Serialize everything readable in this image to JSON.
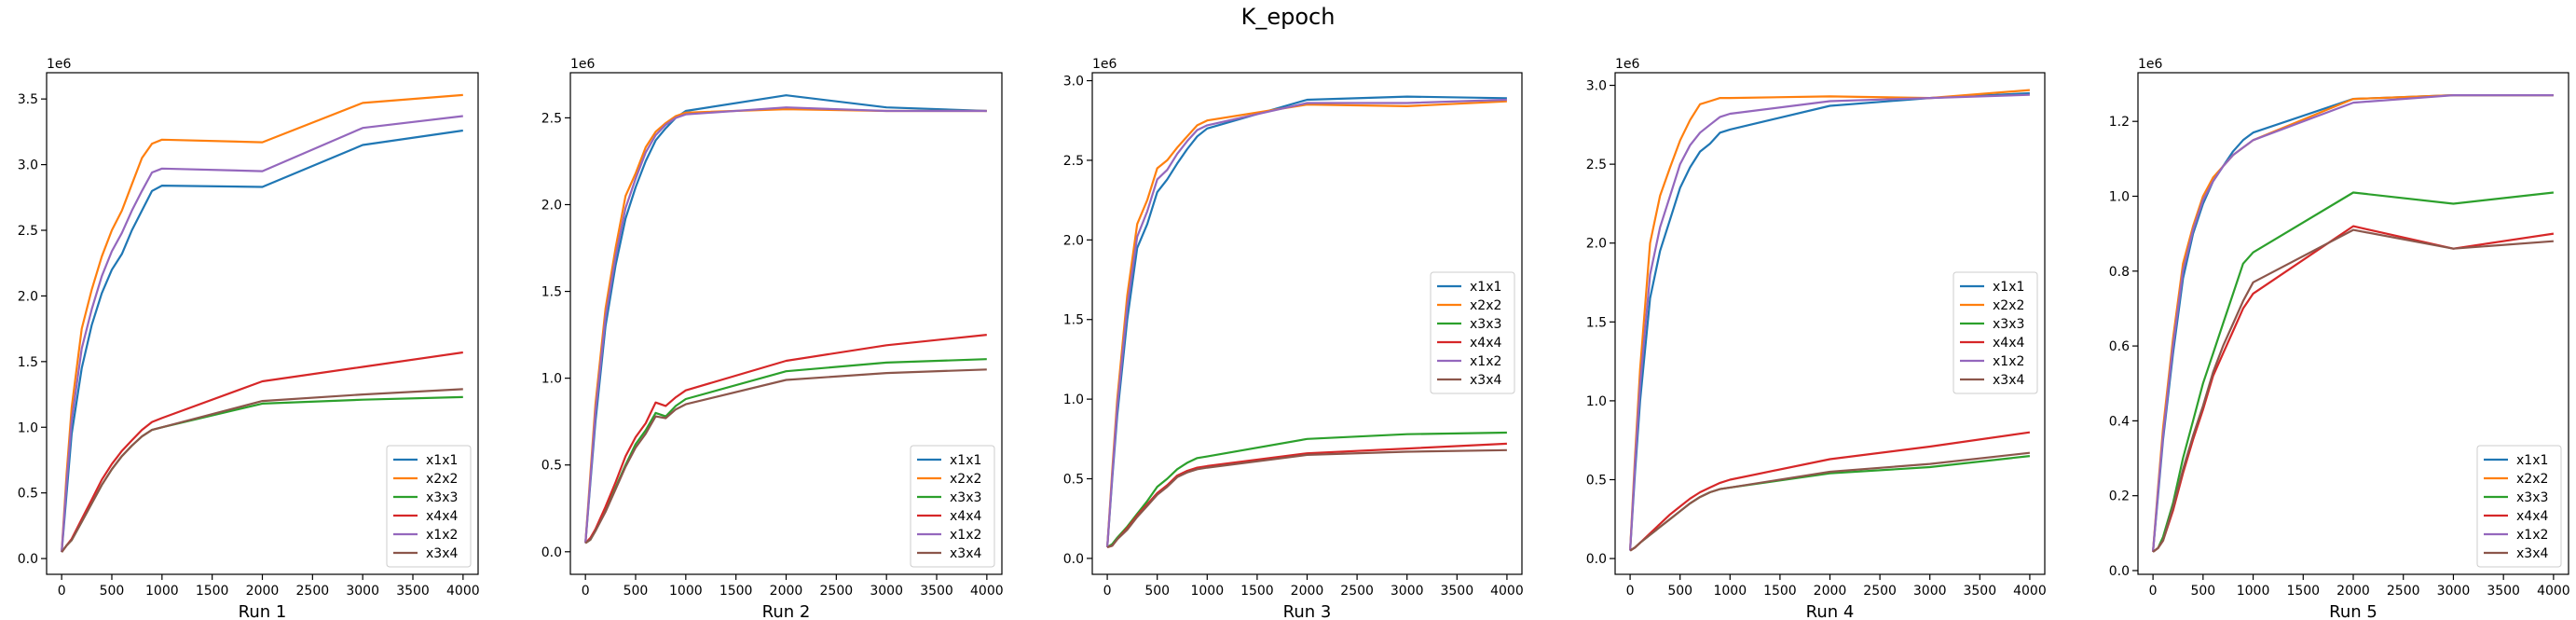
{
  "figure": {
    "title": "K_epoch"
  },
  "chart_data": [
    {
      "type": "line",
      "xlabel": "Run 1",
      "ylabel": "",
      "offset_label": "1e6",
      "xlim": [
        -150,
        4150
      ],
      "ylim": [
        -0.12,
        3.7
      ],
      "xticks": [
        0,
        500,
        1000,
        1500,
        2000,
        2500,
        3000,
        3500,
        4000
      ],
      "yticks": [
        0,
        0.5,
        1.0,
        1.5,
        2.0,
        2.5,
        3.0,
        3.5
      ],
      "ytick_labels": [
        "0.0",
        "0.5",
        "1.0",
        "1.5",
        "2.0",
        "2.5",
        "3.0",
        "3.5"
      ],
      "legend_loc": "lower-right",
      "x": [
        0,
        50,
        100,
        200,
        300,
        400,
        500,
        600,
        700,
        800,
        900,
        1000,
        2000,
        3000,
        4000
      ],
      "series": [
        {
          "name": "x1x1",
          "color": "#1f77b4",
          "values": [
            0.05,
            0.5,
            0.95,
            1.45,
            1.78,
            2.02,
            2.2,
            2.32,
            2.5,
            2.65,
            2.8,
            2.84,
            2.83,
            3.15,
            3.26
          ]
        },
        {
          "name": "x2x2",
          "color": "#ff7f0e",
          "values": [
            0.05,
            0.65,
            1.15,
            1.75,
            2.05,
            2.3,
            2.5,
            2.65,
            2.85,
            3.05,
            3.16,
            3.19,
            3.17,
            3.47,
            3.53
          ]
        },
        {
          "name": "x3x3",
          "color": "#2ca02c",
          "values": [
            0.05,
            0.1,
            0.14,
            0.28,
            0.42,
            0.56,
            0.68,
            0.78,
            0.86,
            0.93,
            0.98,
            1.0,
            1.18,
            1.21,
            1.23
          ]
        },
        {
          "name": "x4x4",
          "color": "#d62728",
          "values": [
            0.05,
            0.1,
            0.15,
            0.3,
            0.45,
            0.6,
            0.72,
            0.82,
            0.9,
            0.98,
            1.04,
            1.07,
            1.35,
            1.46,
            1.57
          ]
        },
        {
          "name": "x1x2",
          "color": "#9467bd",
          "values": [
            0.05,
            0.58,
            1.05,
            1.6,
            1.9,
            2.15,
            2.34,
            2.48,
            2.65,
            2.8,
            2.94,
            2.97,
            2.95,
            3.28,
            3.37
          ]
        },
        {
          "name": "x3x4",
          "color": "#8c564b",
          "values": [
            0.05,
            0.1,
            0.14,
            0.28,
            0.42,
            0.56,
            0.68,
            0.78,
            0.86,
            0.93,
            0.98,
            1.0,
            1.2,
            1.25,
            1.29
          ]
        }
      ]
    },
    {
      "type": "line",
      "xlabel": "Run 2",
      "ylabel": "",
      "offset_label": "1e6",
      "xlim": [
        -150,
        4150
      ],
      "ylim": [
        -0.13,
        2.76
      ],
      "xticks": [
        0,
        500,
        1000,
        1500,
        2000,
        2500,
        3000,
        3500,
        4000
      ],
      "yticks": [
        0,
        0.5,
        1.0,
        1.5,
        2.0,
        2.5
      ],
      "ytick_labels": [
        "0.0",
        "0.5",
        "1.0",
        "1.5",
        "2.0",
        "2.5"
      ],
      "legend_loc": "lower-right",
      "x": [
        0,
        50,
        100,
        200,
        300,
        400,
        500,
        600,
        700,
        800,
        900,
        1000,
        2000,
        3000,
        4000
      ],
      "series": [
        {
          "name": "x1x1",
          "color": "#1f77b4",
          "values": [
            0.05,
            0.4,
            0.75,
            1.3,
            1.65,
            1.92,
            2.1,
            2.25,
            2.37,
            2.44,
            2.5,
            2.54,
            2.63,
            2.56,
            2.54
          ]
        },
        {
          "name": "x2x2",
          "color": "#ff7f0e",
          "values": [
            0.05,
            0.45,
            0.85,
            1.4,
            1.75,
            2.05,
            2.18,
            2.33,
            2.42,
            2.47,
            2.51,
            2.53,
            2.55,
            2.54,
            2.54
          ]
        },
        {
          "name": "x3x3",
          "color": "#2ca02c",
          "values": [
            0.05,
            0.07,
            0.12,
            0.24,
            0.37,
            0.5,
            0.62,
            0.7,
            0.8,
            0.78,
            0.84,
            0.88,
            1.04,
            1.09,
            1.11
          ]
        },
        {
          "name": "x4x4",
          "color": "#d62728",
          "values": [
            0.05,
            0.08,
            0.13,
            0.26,
            0.4,
            0.55,
            0.66,
            0.74,
            0.86,
            0.84,
            0.89,
            0.93,
            1.1,
            1.19,
            1.25
          ]
        },
        {
          "name": "x1x2",
          "color": "#9467bd",
          "values": [
            0.05,
            0.42,
            0.8,
            1.35,
            1.7,
            1.98,
            2.15,
            2.3,
            2.4,
            2.46,
            2.5,
            2.52,
            2.56,
            2.54,
            2.54
          ]
        },
        {
          "name": "x3x4",
          "color": "#8c564b",
          "values": [
            0.05,
            0.07,
            0.12,
            0.23,
            0.36,
            0.49,
            0.6,
            0.68,
            0.78,
            0.77,
            0.82,
            0.85,
            0.99,
            1.03,
            1.05
          ]
        }
      ]
    },
    {
      "type": "line",
      "xlabel": "Run 3",
      "ylabel": "",
      "offset_label": "1e6",
      "xlim": [
        -150,
        4150
      ],
      "ylim": [
        -0.1,
        3.05
      ],
      "xticks": [
        0,
        500,
        1000,
        1500,
        2000,
        2500,
        3000,
        3500,
        4000
      ],
      "yticks": [
        0,
        0.5,
        1.0,
        1.5,
        2.0,
        2.5,
        3.0
      ],
      "ytick_labels": [
        "0.0",
        "0.5",
        "1.0",
        "1.5",
        "2.0",
        "2.5",
        "3.0"
      ],
      "legend_loc": "center-right",
      "x": [
        0,
        50,
        100,
        200,
        300,
        400,
        500,
        600,
        700,
        800,
        900,
        1000,
        2000,
        3000,
        4000
      ],
      "series": [
        {
          "name": "x1x1",
          "color": "#1f77b4",
          "values": [
            0.07,
            0.5,
            0.9,
            1.5,
            1.95,
            2.1,
            2.3,
            2.38,
            2.48,
            2.57,
            2.65,
            2.7,
            2.88,
            2.9,
            2.89
          ]
        },
        {
          "name": "x2x2",
          "color": "#ff7f0e",
          "values": [
            0.07,
            0.55,
            1.0,
            1.65,
            2.1,
            2.25,
            2.45,
            2.5,
            2.58,
            2.65,
            2.72,
            2.75,
            2.85,
            2.84,
            2.87
          ]
        },
        {
          "name": "x3x3",
          "color": "#2ca02c",
          "values": [
            0.07,
            0.09,
            0.13,
            0.2,
            0.28,
            0.36,
            0.45,
            0.5,
            0.56,
            0.6,
            0.63,
            0.64,
            0.75,
            0.78,
            0.79
          ]
        },
        {
          "name": "x4x4",
          "color": "#d62728",
          "values": [
            0.07,
            0.08,
            0.12,
            0.19,
            0.27,
            0.34,
            0.41,
            0.46,
            0.52,
            0.55,
            0.57,
            0.58,
            0.66,
            0.69,
            0.72
          ]
        },
        {
          "name": "x1x2",
          "color": "#9467bd",
          "values": [
            0.07,
            0.52,
            0.95,
            1.58,
            2.02,
            2.18,
            2.38,
            2.44,
            2.54,
            2.62,
            2.69,
            2.72,
            2.86,
            2.86,
            2.88
          ]
        },
        {
          "name": "x3x4",
          "color": "#8c564b",
          "values": [
            0.07,
            0.08,
            0.12,
            0.18,
            0.26,
            0.33,
            0.4,
            0.45,
            0.51,
            0.54,
            0.56,
            0.57,
            0.65,
            0.67,
            0.68
          ]
        }
      ]
    },
    {
      "type": "line",
      "xlabel": "Run 4",
      "ylabel": "",
      "offset_label": "1e6",
      "xlim": [
        -150,
        4150
      ],
      "ylim": [
        -0.1,
        3.08
      ],
      "xticks": [
        0,
        500,
        1000,
        1500,
        2000,
        2500,
        3000,
        3500,
        4000
      ],
      "yticks": [
        0,
        0.5,
        1.0,
        1.5,
        2.0,
        2.5,
        3.0
      ],
      "ytick_labels": [
        "0.0",
        "0.5",
        "1.0",
        "1.5",
        "2.0",
        "2.5",
        "3.0"
      ],
      "legend_loc": "center-right",
      "x": [
        0,
        50,
        100,
        200,
        300,
        400,
        500,
        600,
        700,
        800,
        900,
        1000,
        2000,
        3000,
        4000
      ],
      "series": [
        {
          "name": "x1x1",
          "color": "#1f77b4",
          "values": [
            0.05,
            0.55,
            1.0,
            1.65,
            1.95,
            2.15,
            2.35,
            2.48,
            2.58,
            2.63,
            2.7,
            2.72,
            2.87,
            2.92,
            2.95
          ]
        },
        {
          "name": "x2x2",
          "color": "#ff7f0e",
          "values": [
            0.05,
            0.65,
            1.2,
            2.0,
            2.3,
            2.48,
            2.65,
            2.78,
            2.88,
            2.9,
            2.92,
            2.92,
            2.93,
            2.92,
            2.97
          ]
        },
        {
          "name": "x3x3",
          "color": "#2ca02c",
          "values": [
            0.05,
            0.07,
            0.1,
            0.15,
            0.2,
            0.25,
            0.3,
            0.35,
            0.39,
            0.42,
            0.44,
            0.45,
            0.54,
            0.58,
            0.65
          ]
        },
        {
          "name": "x4x4",
          "color": "#d62728",
          "values": [
            0.05,
            0.07,
            0.1,
            0.16,
            0.22,
            0.28,
            0.33,
            0.38,
            0.42,
            0.45,
            0.48,
            0.5,
            0.63,
            0.71,
            0.8
          ]
        },
        {
          "name": "x1x2",
          "color": "#9467bd",
          "values": [
            0.05,
            0.6,
            1.1,
            1.8,
            2.1,
            2.3,
            2.5,
            2.62,
            2.7,
            2.75,
            2.8,
            2.82,
            2.9,
            2.92,
            2.94
          ]
        },
        {
          "name": "x3x4",
          "color": "#8c564b",
          "values": [
            0.05,
            0.07,
            0.1,
            0.15,
            0.2,
            0.25,
            0.3,
            0.35,
            0.39,
            0.42,
            0.44,
            0.45,
            0.55,
            0.6,
            0.67
          ]
        }
      ]
    },
    {
      "type": "line",
      "xlabel": "Run 5",
      "ylabel": "",
      "offset_label": "1e6",
      "xlim": [
        -150,
        4150
      ],
      "ylim": [
        -0.01,
        1.33
      ],
      "xticks": [
        0,
        500,
        1000,
        1500,
        2000,
        2500,
        3000,
        3500,
        4000
      ],
      "yticks": [
        0,
        0.2,
        0.4,
        0.6,
        0.8,
        1.0,
        1.2
      ],
      "ytick_labels": [
        "0.0",
        "0.2",
        "0.4",
        "0.6",
        "0.8",
        "1.0",
        "1.2"
      ],
      "legend_loc": "lower-right",
      "x": [
        0,
        50,
        100,
        200,
        300,
        400,
        500,
        600,
        700,
        800,
        900,
        1000,
        2000,
        3000,
        4000
      ],
      "series": [
        {
          "name": "x1x1",
          "color": "#1f77b4",
          "values": [
            0.05,
            0.2,
            0.35,
            0.58,
            0.78,
            0.9,
            0.98,
            1.04,
            1.08,
            1.12,
            1.15,
            1.17,
            1.26,
            1.27,
            1.27
          ]
        },
        {
          "name": "x2x2",
          "color": "#ff7f0e",
          "values": [
            0.05,
            0.22,
            0.38,
            0.62,
            0.82,
            0.92,
            1.0,
            1.05,
            1.08,
            1.11,
            1.13,
            1.15,
            1.26,
            1.27,
            1.27
          ]
        },
        {
          "name": "x3x3",
          "color": "#2ca02c",
          "values": [
            0.05,
            0.06,
            0.09,
            0.18,
            0.3,
            0.4,
            0.5,
            0.58,
            0.66,
            0.74,
            0.82,
            0.85,
            1.01,
            0.98,
            1.01
          ]
        },
        {
          "name": "x4x4",
          "color": "#d62728",
          "values": [
            0.05,
            0.06,
            0.08,
            0.16,
            0.26,
            0.35,
            0.43,
            0.52,
            0.58,
            0.64,
            0.7,
            0.74,
            0.92,
            0.86,
            0.9
          ]
        },
        {
          "name": "x1x2",
          "color": "#9467bd",
          "values": [
            0.05,
            0.21,
            0.36,
            0.6,
            0.8,
            0.91,
            0.99,
            1.04,
            1.08,
            1.11,
            1.13,
            1.15,
            1.25,
            1.27,
            1.27
          ]
        },
        {
          "name": "x3x4",
          "color": "#8c564b",
          "values": [
            0.05,
            0.06,
            0.08,
            0.17,
            0.27,
            0.36,
            0.44,
            0.53,
            0.6,
            0.66,
            0.72,
            0.77,
            0.91,
            0.86,
            0.88
          ]
        }
      ]
    }
  ]
}
